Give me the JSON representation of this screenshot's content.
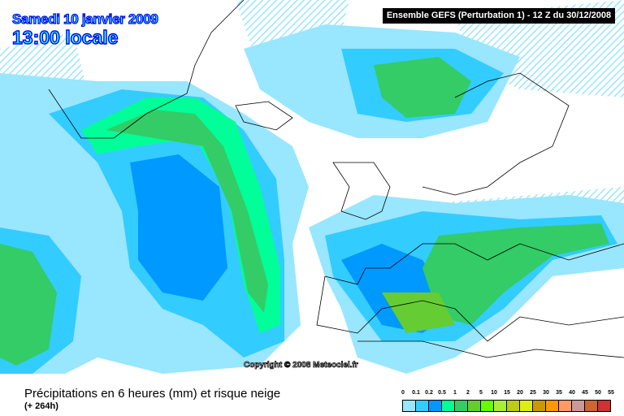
{
  "header": {
    "date": "Samedi 10 janvier 2009",
    "time": "13:00 locale",
    "run": "Ensemble GEFS (Perturbation 1)  -  12 Z du 30/12/2008"
  },
  "copyright": "Copyright © 2008 Meteociel.fr",
  "footer": {
    "title": "Précipitations en 6 heures (mm) et risque neige",
    "subtitle": "(+ 264h)"
  },
  "legend": {
    "labels": [
      "0",
      "0.1",
      "0.2",
      "0.5",
      "1",
      "2",
      "5",
      "10",
      "15",
      "20",
      "25",
      "30",
      "35",
      "40",
      "45",
      "50",
      "55"
    ],
    "colors": [
      "#ffffff",
      "#99e6ff",
      "#33ccff",
      "#0099ff",
      "#00ff99",
      "#33cc66",
      "#66cc33",
      "#66ff00",
      "#aaee33",
      "#bbcc11",
      "#ddee11",
      "#cc9900",
      "#ff9900",
      "#ff9966",
      "#cc9999",
      "#cc6633",
      "#cc3333"
    ]
  },
  "map_colors": {
    "light": "#99e6ff",
    "cyan": "#33ccff",
    "blue": "#0099ff",
    "green1": "#00ff99",
    "green2": "#33cc66",
    "green3": "#66cc33"
  }
}
